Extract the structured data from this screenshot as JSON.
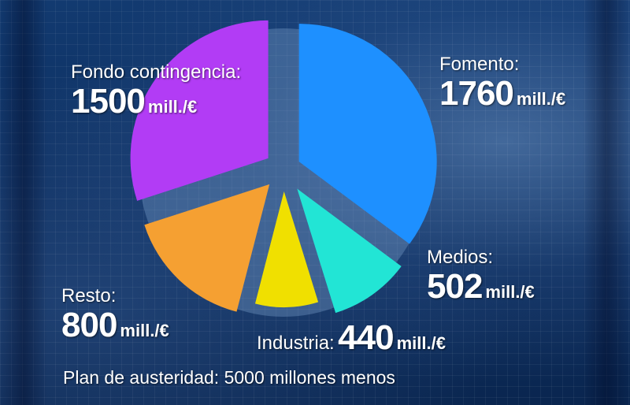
{
  "chart_data": {
    "type": "pie",
    "unit": "mill./€",
    "slices": [
      {
        "name": "Fomento:",
        "value": 1760,
        "color": "#1e90ff"
      },
      {
        "name": "Medios:",
        "value": 502,
        "color": "#22e5d5"
      },
      {
        "name": "Industria:",
        "value": 440,
        "color": "#f0e000"
      },
      {
        "name": "Resto:",
        "value": 800,
        "color": "#f5a032"
      },
      {
        "name": "Fondo contingencia:",
        "value": 1500,
        "color": "#b23cf5"
      }
    ],
    "footer": "Plan de austeridad: 5000 millones menos"
  }
}
